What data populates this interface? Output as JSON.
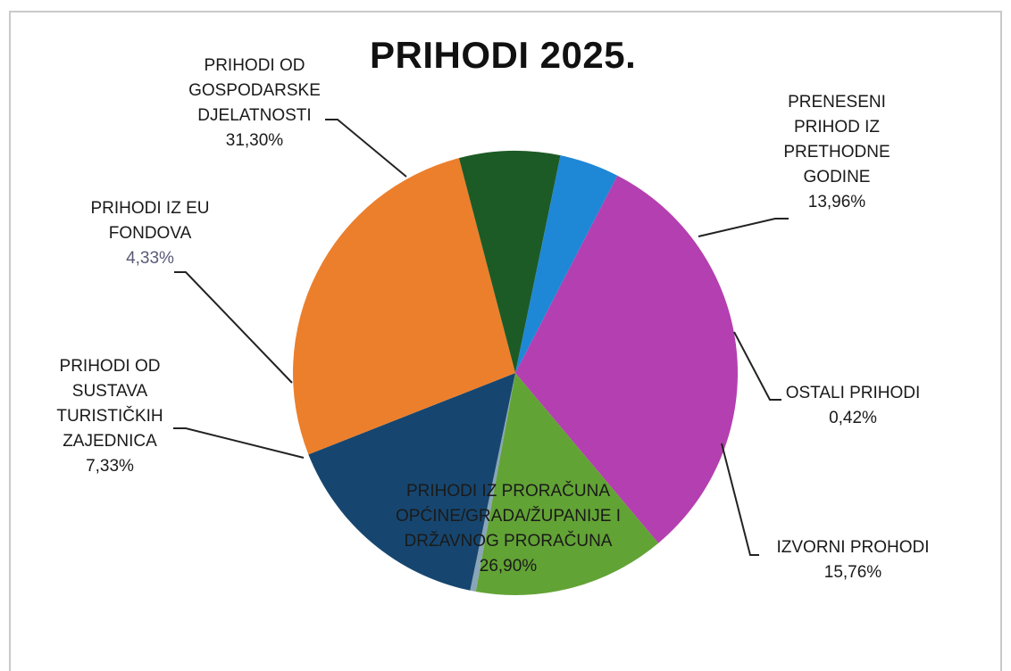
{
  "chart_data": {
    "type": "pie",
    "title": "PRIHODI 2025.",
    "slices": [
      {
        "name": [
          "PRIHODI OD",
          "GOSPODARSKE",
          "DJELATNOSTI"
        ],
        "value": 31.3,
        "label": "31,30%",
        "color": "#b43fb0"
      },
      {
        "name": [
          "PRENESENI",
          "PRIHOD IZ",
          "PRETHODNE",
          "GODINE"
        ],
        "value": 13.96,
        "label": "13,96%",
        "color": "#62a335"
      },
      {
        "name": [
          "OSTALI PRIHODI"
        ],
        "value": 0.42,
        "label": "0,42%",
        "color": "#8aa4b8"
      },
      {
        "name": [
          "IZVORNI PROHODI"
        ],
        "value": 15.76,
        "label": "15,76%",
        "color": "#16466f"
      },
      {
        "name": [
          "PRIHODI IZ PRORAČUNA",
          "OPĆINE/GRADA/ŽUPANIJE I",
          "DRŽAVNOG PRORAČUNA"
        ],
        "value": 26.9,
        "label": "26,90%",
        "color": "#ec7f2c"
      },
      {
        "name": [
          "PRIHODI OD",
          "SUSTAVA",
          "TURISTIČKIH",
          "ZAJEDNICA"
        ],
        "value": 7.33,
        "label": "7,33%",
        "color": "#1d5b26"
      },
      {
        "name": [
          "PRIHODI IZ EU",
          "FONDOVA"
        ],
        "value": 4.33,
        "label": "4,33%",
        "color": "#1e87d6"
      }
    ],
    "legend": "none"
  }
}
